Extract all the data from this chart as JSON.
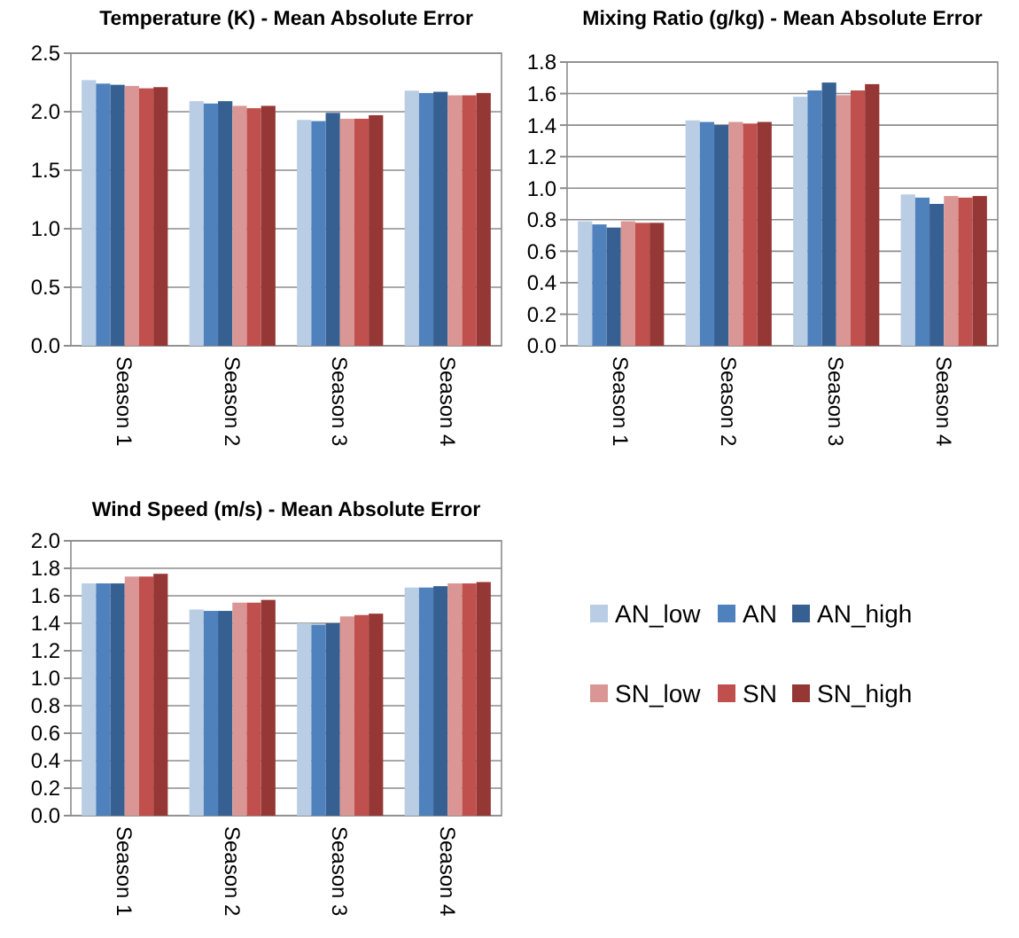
{
  "chart_data": [
    {
      "type": "bar",
      "title": "Temperature (K) - Mean Absolute Error",
      "categories": [
        "Season 1",
        "Season 2",
        "Season 3",
        "Season 4"
      ],
      "ylim": [
        0,
        2.5
      ],
      "yticks": [
        {
          "value": 0,
          "label": "0.0"
        },
        {
          "value": 0.5,
          "label": "0.5"
        },
        {
          "value": 1,
          "label": "1.0"
        },
        {
          "value": 1.5,
          "label": "1.5"
        },
        {
          "value": 2,
          "label": "2.0"
        },
        {
          "value": 2.5,
          "label": "2.5"
        }
      ],
      "grid": "y",
      "series": [
        {
          "color": "#b9cde5",
          "values": [
            2.27,
            2.09,
            1.93,
            2.18
          ]
        },
        {
          "color": "#4f81bd",
          "values": [
            2.24,
            2.07,
            1.92,
            2.16
          ]
        },
        {
          "color": "#376092",
          "values": [
            2.23,
            2.09,
            1.99,
            2.17
          ]
        },
        {
          "color": "#d99694",
          "values": [
            2.22,
            2.05,
            1.94,
            2.14
          ]
        },
        {
          "color": "#c0504d",
          "values": [
            2.2,
            2.03,
            1.94,
            2.14
          ]
        },
        {
          "color": "#953735",
          "values": [
            2.21,
            2.05,
            1.97,
            2.16
          ]
        }
      ]
    },
    {
      "type": "bar",
      "title": "Mixing Ratio (g/kg) - Mean Absolute Error",
      "categories": [
        "Season 1",
        "Season 2",
        "Season 3",
        "Season 4"
      ],
      "ylim": [
        0,
        1.8
      ],
      "yticks": [
        {
          "value": 0,
          "label": "0.0"
        },
        {
          "value": 0.2,
          "label": "0.2"
        },
        {
          "value": 0.4,
          "label": "0.4"
        },
        {
          "value": 0.6,
          "label": "0.6"
        },
        {
          "value": 0.8,
          "label": "0.8"
        },
        {
          "value": 1,
          "label": "1.0"
        },
        {
          "value": 1.2,
          "label": "1.2"
        },
        {
          "value": 1.4,
          "label": "1.4"
        },
        {
          "value": 1.6,
          "label": "1.6"
        },
        {
          "value": 1.8,
          "label": "1.8"
        }
      ],
      "grid": "y",
      "series": [
        {
          "color": "#b9cde5",
          "values": [
            0.79,
            1.43,
            1.58,
            0.96
          ]
        },
        {
          "color": "#4f81bd",
          "values": [
            0.77,
            1.42,
            1.62,
            0.94
          ]
        },
        {
          "color": "#376092",
          "values": [
            0.75,
            1.4,
            1.67,
            0.9
          ]
        },
        {
          "color": "#d99694",
          "values": [
            0.79,
            1.42,
            1.59,
            0.95
          ]
        },
        {
          "color": "#c0504d",
          "values": [
            0.78,
            1.41,
            1.62,
            0.94
          ]
        },
        {
          "color": "#953735",
          "values": [
            0.78,
            1.42,
            1.66,
            0.95
          ]
        }
      ]
    },
    {
      "type": "bar",
      "title": "Wind Speed (m/s) - Mean Absolute Error",
      "categories": [
        "Season 1",
        "Season 2",
        "Season 3",
        "Season 4"
      ],
      "ylim": [
        0,
        2
      ],
      "yticks": [
        {
          "value": 0,
          "label": "0.0"
        },
        {
          "value": 0.2,
          "label": "0.2"
        },
        {
          "value": 0.4,
          "label": "0.4"
        },
        {
          "value": 0.6,
          "label": "0.6"
        },
        {
          "value": 0.8,
          "label": "0.8"
        },
        {
          "value": 1,
          "label": "1.0"
        },
        {
          "value": 1.2,
          "label": "1.2"
        },
        {
          "value": 1.4,
          "label": "1.4"
        },
        {
          "value": 1.6,
          "label": "1.6"
        },
        {
          "value": 1.8,
          "label": "1.8"
        },
        {
          "value": 2,
          "label": "2.0"
        }
      ],
      "grid": "y",
      "legend": "right",
      "series": [
        {
          "name": "AN_low",
          "color": "#b9cde5",
          "values": [
            1.69,
            1.5,
            1.4,
            1.66
          ]
        },
        {
          "name": "AN",
          "color": "#4f81bd",
          "values": [
            1.69,
            1.49,
            1.39,
            1.66
          ]
        },
        {
          "name": "AN_high",
          "color": "#376092",
          "values": [
            1.69,
            1.49,
            1.4,
            1.67
          ]
        },
        {
          "name": "SN_low",
          "color": "#d99694",
          "values": [
            1.74,
            1.55,
            1.45,
            1.69
          ]
        },
        {
          "name": "SN",
          "color": "#c0504d",
          "values": [
            1.74,
            1.55,
            1.46,
            1.69
          ]
        },
        {
          "name": "SN_high",
          "color": "#953735",
          "values": [
            1.76,
            1.57,
            1.47,
            1.7
          ]
        }
      ]
    }
  ]
}
